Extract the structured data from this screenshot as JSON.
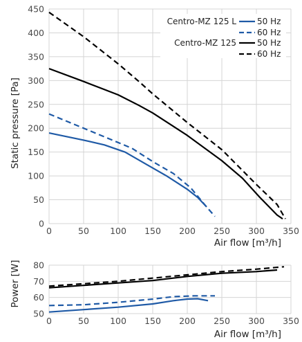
{
  "chart_data": [
    {
      "type": "line",
      "xlabel": "Air flow [m³/h]",
      "ylabel": "Static pressure [Pa]",
      "xlim": [
        0,
        350
      ],
      "ylim": [
        0,
        450
      ],
      "xticks": [
        0,
        50,
        100,
        150,
        200,
        250,
        300,
        350
      ],
      "yticks": [
        0,
        50,
        100,
        150,
        200,
        250,
        300,
        350,
        400,
        450
      ],
      "grid": true,
      "legend": {
        "placement": "top-right",
        "groups": [
          {
            "label": "Centro-MZ 125 L",
            "entries": [
              "50 Hz",
              "60 Hz"
            ]
          },
          {
            "label": "Centro-MZ 125",
            "entries": [
              "50 Hz",
              "60 Hz"
            ]
          }
        ]
      },
      "series": [
        {
          "group": "Centro-MZ 125 L",
          "label": "50 Hz",
          "color": "#1f5aa6",
          "dash": "solid",
          "points": [
            [
              0,
              190
            ],
            [
              50,
              175
            ],
            [
              80,
              165
            ],
            [
              110,
              150
            ],
            [
              140,
              125
            ],
            [
              170,
              100
            ],
            [
              200,
              72
            ],
            [
              215,
              55
            ],
            [
              228,
              35
            ]
          ]
        },
        {
          "group": "Centro-MZ 125 L",
          "label": "60 Hz",
          "color": "#1f5aa6",
          "dash": "dashed",
          "points": [
            [
              0,
              230
            ],
            [
              50,
              200
            ],
            [
              100,
              170
            ],
            [
              120,
              158
            ],
            [
              150,
              130
            ],
            [
              180,
              105
            ],
            [
              205,
              75
            ],
            [
              225,
              40
            ],
            [
              240,
              15
            ]
          ]
        },
        {
          "group": "Centro-MZ 125",
          "label": "50 Hz",
          "color": "#000000",
          "dash": "solid",
          "points": [
            [
              0,
              325
            ],
            [
              50,
              298
            ],
            [
              100,
              270
            ],
            [
              130,
              248
            ],
            [
              150,
              232
            ],
            [
              200,
              185
            ],
            [
              250,
              132
            ],
            [
              280,
              95
            ],
            [
              305,
              55
            ],
            [
              330,
              18
            ],
            [
              338,
              10
            ]
          ]
        },
        {
          "group": "Centro-MZ 125",
          "label": "60 Hz",
          "color": "#000000",
          "dash": "dashed",
          "points": [
            [
              0,
              443
            ],
            [
              50,
              392
            ],
            [
              100,
              335
            ],
            [
              130,
              298
            ],
            [
              150,
              272
            ],
            [
              200,
              212
            ],
            [
              250,
              155
            ],
            [
              300,
              82
            ],
            [
              330,
              40
            ],
            [
              342,
              10
            ]
          ]
        }
      ]
    },
    {
      "type": "line",
      "xlabel": "Air flow [m³/h]",
      "ylabel": "Power [W]",
      "xlim": [
        0,
        350
      ],
      "ylim": [
        50,
        80
      ],
      "xticks": [
        0,
        50,
        100,
        150,
        200,
        250,
        300,
        350
      ],
      "yticks": [
        50,
        60,
        70,
        80
      ],
      "grid": true,
      "series": [
        {
          "group": "Centro-MZ 125 L",
          "label": "50 Hz",
          "color": "#1f5aa6",
          "dash": "solid",
          "points": [
            [
              0,
              51
            ],
            [
              50,
              52.5
            ],
            [
              100,
              54
            ],
            [
              150,
              56
            ],
            [
              180,
              58
            ],
            [
              200,
              59
            ],
            [
              215,
              59.2
            ],
            [
              230,
              58
            ]
          ]
        },
        {
          "group": "Centro-MZ 125 L",
          "label": "60 Hz",
          "color": "#1f5aa6",
          "dash": "dashed",
          "points": [
            [
              0,
              55
            ],
            [
              50,
              55.5
            ],
            [
              100,
              57
            ],
            [
              150,
              59
            ],
            [
              180,
              60.5
            ],
            [
              210,
              61
            ],
            [
              240,
              61
            ]
          ]
        },
        {
          "group": "Centro-MZ 125",
          "label": "50 Hz",
          "color": "#000000",
          "dash": "solid",
          "points": [
            [
              0,
              66
            ],
            [
              50,
              67.5
            ],
            [
              100,
              69
            ],
            [
              150,
              70.5
            ],
            [
              200,
              73
            ],
            [
              250,
              75
            ],
            [
              300,
              76
            ],
            [
              330,
              77
            ]
          ]
        },
        {
          "group": "Centro-MZ 125",
          "label": "60 Hz",
          "color": "#000000",
          "dash": "dashed",
          "points": [
            [
              0,
              67
            ],
            [
              50,
              68.5
            ],
            [
              100,
              70
            ],
            [
              150,
              72
            ],
            [
              200,
              74
            ],
            [
              250,
              76
            ],
            [
              300,
              77.5
            ],
            [
              340,
              79
            ]
          ]
        }
      ]
    }
  ]
}
